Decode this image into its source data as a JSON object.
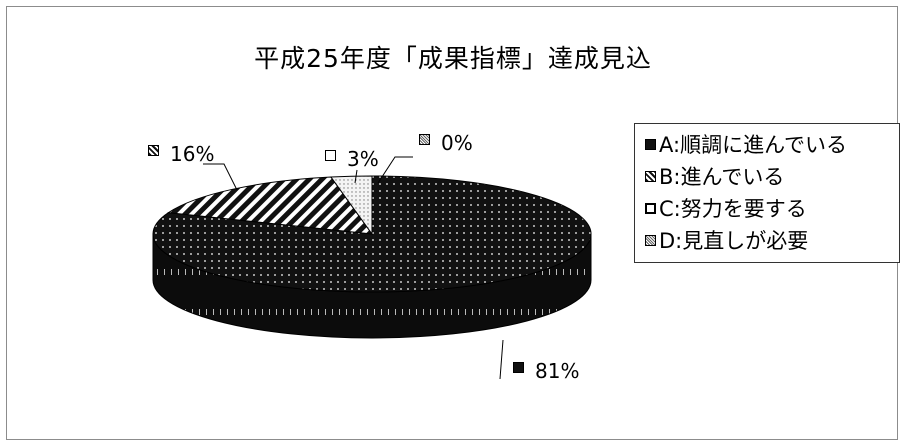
{
  "chart_data": {
    "type": "pie",
    "title": "平成25年度「成果指標」達成見込",
    "categories": [
      "A:順調に進んでいる",
      "B:進んでいる",
      "C:努力を要する",
      "D:見直しが必要"
    ],
    "values": [
      81,
      16,
      3,
      0
    ],
    "value_labels": [
      "81%",
      "16%",
      "3%",
      "0%"
    ],
    "legend_position": "right",
    "style": "3d",
    "colors": {
      "A": "#111111",
      "B": "#111111",
      "C": "#f2f2f2",
      "D": "#666666"
    }
  }
}
